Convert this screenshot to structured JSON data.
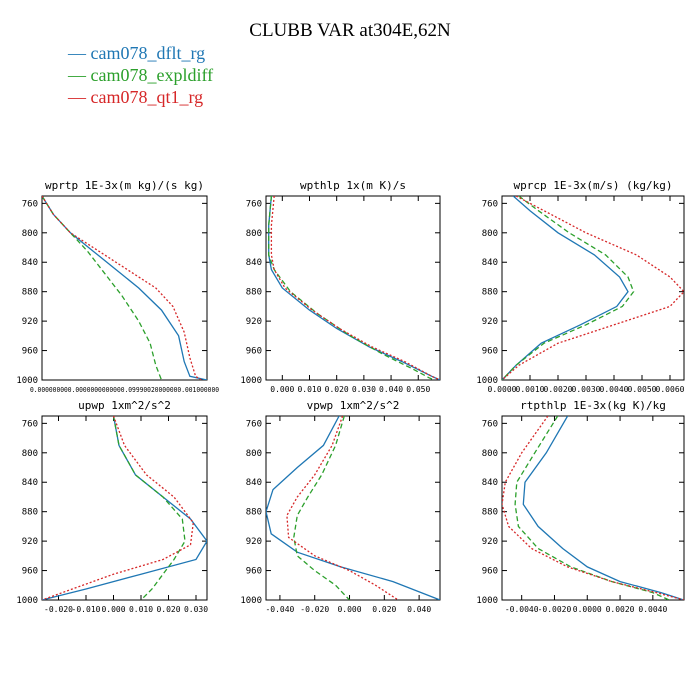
{
  "title": "CLUBB VAR at304E,62N",
  "legend": [
    {
      "label": "— cam078_dflt_rg",
      "color": "#1f77b4"
    },
    {
      "label": "— cam078_expldiff",
      "color": "#2ca02c"
    },
    {
      "label": "— cam078_qt1_rg",
      "color": "#d62728"
    }
  ],
  "chart_data": [
    {
      "type": "line",
      "title": "wprtp  1E-3x(m kg)/(s kg)",
      "xlim": [
        0,
        0.0029
      ],
      "ylim": [
        1000,
        750
      ],
      "y_ticks": [
        760,
        800,
        840,
        880,
        920,
        960,
        1000
      ],
      "x_ticks": [],
      "x_tick_text": "0.000000000.0000000000000.09990020000000.001000000",
      "series": [
        {
          "name": "cam078_dflt_rg",
          "color": "#1f77b4",
          "dash": "",
          "x": [
            0.0,
            0.0002,
            0.0005,
            0.0009,
            0.0013,
            0.0017,
            0.0021,
            0.0024,
            0.0025,
            0.0026,
            0.0029
          ],
          "y": [
            750,
            775,
            800,
            825,
            850,
            875,
            905,
            940,
            975,
            995,
            1000
          ]
        },
        {
          "name": "cam078_expldiff",
          "color": "#2ca02c",
          "dash": "5,3",
          "x": [
            0.0,
            0.0002,
            0.0005,
            0.0008,
            0.0011,
            0.0014,
            0.0017,
            0.0019,
            0.002,
            0.0021
          ],
          "y": [
            750,
            775,
            800,
            825,
            855,
            885,
            920,
            950,
            980,
            1000
          ]
        },
        {
          "name": "cam078_qt1_rg",
          "color": "#d62728",
          "dash": "2,2",
          "x": [
            0.0,
            0.0002,
            0.0005,
            0.001,
            0.0015,
            0.002,
            0.0023,
            0.0025,
            0.0026,
            0.0027,
            0.0028
          ],
          "y": [
            750,
            775,
            800,
            825,
            850,
            875,
            900,
            935,
            970,
            995,
            1000
          ]
        }
      ]
    },
    {
      "type": "line",
      "title": "wpthlp  1x(m K)/s",
      "xlim": [
        -0.006,
        0.058
      ],
      "ylim": [
        1000,
        750
      ],
      "y_ticks": [
        760,
        800,
        840,
        880,
        920,
        960,
        1000
      ],
      "x_ticks": [
        0,
        0.01,
        0.02,
        0.03,
        0.04,
        0.05
      ],
      "x_tick_labels": [
        "0.000",
        "0.010",
        "0.020",
        "0.030",
        "0.040",
        "0.050"
      ],
      "series": [
        {
          "name": "cam078_dflt_rg",
          "color": "#1f77b4",
          "dash": "",
          "x": [
            -0.004,
            -0.005,
            -0.005,
            -0.004,
            0.0,
            0.01,
            0.02,
            0.032,
            0.044,
            0.055,
            0.058
          ],
          "y": [
            750,
            790,
            830,
            850,
            875,
            905,
            930,
            955,
            975,
            995,
            1000
          ]
        },
        {
          "name": "cam078_expldiff",
          "color": "#2ca02c",
          "dash": "5,3",
          "x": [
            -0.004,
            -0.005,
            -0.005,
            -0.003,
            0.003,
            0.013,
            0.025,
            0.037,
            0.048,
            0.054,
            0.056
          ],
          "y": [
            750,
            790,
            830,
            850,
            880,
            910,
            940,
            965,
            985,
            997,
            1000
          ]
        },
        {
          "name": "cam078_qt1_rg",
          "color": "#d62728",
          "dash": "2,2",
          "x": [
            -0.003,
            -0.004,
            -0.004,
            -0.003,
            0.001,
            0.011,
            0.021,
            0.033,
            0.045,
            0.055,
            0.058
          ],
          "y": [
            750,
            790,
            830,
            850,
            875,
            905,
            930,
            955,
            975,
            995,
            1000
          ]
        }
      ]
    },
    {
      "type": "line",
      "title": "wprcp  1E-3x(m/s) (kg/kg)",
      "xlim": [
        0,
        0.0065
      ],
      "ylim": [
        1000,
        750
      ],
      "y_ticks": [
        760,
        800,
        840,
        880,
        920,
        960,
        1000
      ],
      "x_ticks": [
        0,
        0.001,
        0.002,
        0.003,
        0.004,
        0.005,
        0.006
      ],
      "x_tick_labels": [
        "0.0000",
        "0.0010",
        "0.0020",
        "0.0030",
        "0.0040",
        "0.0050",
        "0.0060"
      ],
      "series": [
        {
          "name": "cam078_dflt_rg",
          "color": "#1f77b4",
          "dash": "",
          "x": [
            0.0004,
            0.001,
            0.002,
            0.0033,
            0.0042,
            0.0045,
            0.0041,
            0.0028,
            0.0014,
            0.0005,
            0.0
          ],
          "y": [
            750,
            770,
            800,
            830,
            860,
            880,
            900,
            925,
            950,
            980,
            1000
          ]
        },
        {
          "name": "cam078_expldiff",
          "color": "#2ca02c",
          "dash": "5,3",
          "x": [
            0.0006,
            0.0013,
            0.0024,
            0.0037,
            0.0045,
            0.0047,
            0.0043,
            0.003,
            0.0015,
            0.0005,
            0.0
          ],
          "y": [
            750,
            770,
            800,
            830,
            860,
            880,
            900,
            925,
            950,
            980,
            1000
          ]
        },
        {
          "name": "cam078_qt1_rg",
          "color": "#d62728",
          "dash": "2,2",
          "x": [
            0.0005,
            0.0015,
            0.003,
            0.0048,
            0.006,
            0.0065,
            0.006,
            0.004,
            0.002,
            0.0006,
            0.0
          ],
          "y": [
            750,
            770,
            800,
            830,
            860,
            880,
            900,
            925,
            950,
            980,
            1000
          ]
        }
      ]
    },
    {
      "type": "line",
      "title": "upwp  1xm^2/s^2",
      "xlim": [
        -0.026,
        0.034
      ],
      "ylim": [
        1000,
        750
      ],
      "y_ticks": [
        760,
        800,
        840,
        880,
        920,
        960,
        1000
      ],
      "x_ticks": [
        -0.02,
        -0.01,
        0,
        0.01,
        0.02,
        0.03
      ],
      "x_tick_labels": [
        "-0.020",
        "-0.010",
        "0.000",
        "0.010",
        "0.020",
        "0.030"
      ],
      "series": [
        {
          "name": "cam078_dflt_rg",
          "color": "#1f77b4",
          "dash": "",
          "x": [
            0.0,
            0.002,
            0.008,
            0.018,
            0.028,
            0.034,
            0.03,
            0.01,
            -0.01,
            -0.026
          ],
          "y": [
            750,
            790,
            830,
            860,
            890,
            920,
            945,
            965,
            985,
            1000
          ]
        },
        {
          "name": "cam078_expldiff",
          "color": "#2ca02c",
          "dash": "5,3",
          "x": [
            0.0,
            0.002,
            0.008,
            0.018,
            0.025,
            0.026,
            0.022,
            0.018,
            0.014,
            0.01
          ],
          "y": [
            750,
            790,
            830,
            860,
            890,
            920,
            945,
            965,
            985,
            1000
          ]
        },
        {
          "name": "cam078_qt1_rg",
          "color": "#d62728",
          "dash": "2,2",
          "x": [
            0.0,
            0.004,
            0.012,
            0.022,
            0.029,
            0.028,
            0.018,
            0.0,
            -0.015,
            -0.026
          ],
          "y": [
            750,
            790,
            830,
            860,
            895,
            925,
            945,
            965,
            985,
            1000
          ]
        }
      ]
    },
    {
      "type": "line",
      "title": "vpwp  1xm^2/s^2",
      "xlim": [
        -0.048,
        0.052
      ],
      "ylim": [
        1000,
        750
      ],
      "y_ticks": [
        760,
        800,
        840,
        880,
        920,
        960,
        1000
      ],
      "x_ticks": [
        -0.04,
        -0.02,
        0,
        0.02,
        0.04
      ],
      "x_tick_labels": [
        "-0.040",
        "-0.020",
        "0.000",
        "0.020",
        "0.040"
      ],
      "series": [
        {
          "name": "cam078_dflt_rg",
          "color": "#1f77b4",
          "dash": "",
          "x": [
            -0.006,
            -0.015,
            -0.03,
            -0.044,
            -0.048,
            -0.045,
            -0.03,
            -0.005,
            0.025,
            0.052
          ],
          "y": [
            750,
            790,
            820,
            850,
            880,
            910,
            935,
            955,
            975,
            1000
          ]
        },
        {
          "name": "cam078_expldiff",
          "color": "#2ca02c",
          "dash": "5,3",
          "x": [
            -0.003,
            -0.008,
            -0.016,
            -0.024,
            -0.03,
            -0.032,
            -0.03,
            -0.02,
            -0.008,
            0.0
          ],
          "y": [
            750,
            790,
            830,
            860,
            885,
            915,
            940,
            960,
            980,
            1000
          ]
        },
        {
          "name": "cam078_qt1_rg",
          "color": "#d62728",
          "dash": "2,2",
          "x": [
            -0.004,
            -0.01,
            -0.02,
            -0.03,
            -0.036,
            -0.035,
            -0.02,
            0.0,
            0.015,
            0.028
          ],
          "y": [
            750,
            790,
            830,
            860,
            885,
            915,
            940,
            960,
            980,
            1000
          ]
        }
      ]
    },
    {
      "type": "line",
      "title": "rtpthlp  1E-3x(kg K)/kg",
      "xlim": [
        -0.0052,
        0.0059
      ],
      "ylim": [
        1000,
        750
      ],
      "y_ticks": [
        760,
        800,
        840,
        880,
        920,
        960,
        1000
      ],
      "x_ticks": [
        -0.004,
        -0.002,
        0,
        0.002,
        0.004
      ],
      "x_tick_labels": [
        "-0.0040",
        "-0.0020",
        "0.0000",
        "0.0020",
        "0.0040"
      ],
      "series": [
        {
          "name": "cam078_dflt_rg",
          "color": "#1f77b4",
          "dash": "",
          "x": [
            -0.0012,
            -0.0025,
            -0.0038,
            -0.0039,
            -0.003,
            -0.0015,
            0.0,
            0.002,
            0.0045,
            0.0059
          ],
          "y": [
            750,
            800,
            840,
            870,
            900,
            930,
            955,
            975,
            990,
            1000
          ]
        },
        {
          "name": "cam078_expldiff",
          "color": "#2ca02c",
          "dash": "5,3",
          "x": [
            -0.0018,
            -0.0032,
            -0.0043,
            -0.0044,
            -0.0042,
            -0.003,
            -0.001,
            0.0015,
            0.004,
            0.005
          ],
          "y": [
            750,
            800,
            840,
            870,
            900,
            930,
            955,
            975,
            990,
            1000
          ]
        },
        {
          "name": "cam078_qt1_rg",
          "color": "#d62728",
          "dash": "2,2",
          "x": [
            -0.0024,
            -0.004,
            -0.005,
            -0.0052,
            -0.0048,
            -0.0034,
            -0.0012,
            0.0015,
            0.0042,
            0.0059
          ],
          "y": [
            750,
            800,
            840,
            870,
            900,
            930,
            955,
            975,
            990,
            1000
          ]
        }
      ]
    }
  ]
}
